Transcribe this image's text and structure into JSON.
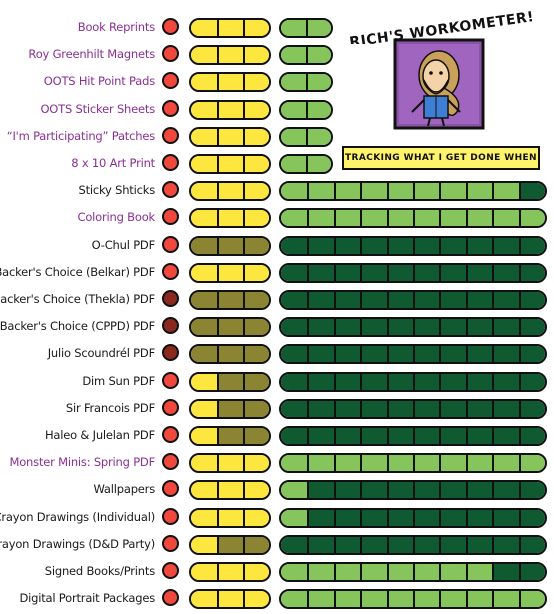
{
  "header": {
    "title": "RICH'S WORKOMETER!",
    "tagline": "TRACKING WHAT I GET DONE WHEN"
  },
  "colors": {
    "circle_red": "#f0483c",
    "circle_dark_red": "#8a2a1e",
    "yellow": "#fde63d",
    "olive": "#8b8432",
    "light_green": "#85c55c",
    "dark_green": "#0f5a30",
    "label_purple": "#8b2f96"
  },
  "rows": [
    {
      "label": "Book Reprints",
      "label_color": "purple",
      "circle": "red",
      "stage": [
        "yellow",
        "yellow",
        "yellow"
      ],
      "progress_segments": 2,
      "progress": [
        "light",
        "light"
      ]
    },
    {
      "label": "Roy Greenhilt Magnets",
      "label_color": "purple",
      "circle": "red",
      "stage": [
        "yellow",
        "yellow",
        "yellow"
      ],
      "progress_segments": 2,
      "progress": [
        "light",
        "light"
      ]
    },
    {
      "label": "OOTS Hit Point Pads",
      "label_color": "purple",
      "circle": "red",
      "stage": [
        "yellow",
        "yellow",
        "yellow"
      ],
      "progress_segments": 2,
      "progress": [
        "light",
        "light"
      ]
    },
    {
      "label": "OOTS Sticker Sheets",
      "label_color": "purple",
      "circle": "red",
      "stage": [
        "yellow",
        "yellow",
        "yellow"
      ],
      "progress_segments": 2,
      "progress": [
        "light",
        "light"
      ]
    },
    {
      "label": "“I'm Participating” Patches",
      "label_color": "purple",
      "circle": "red",
      "stage": [
        "yellow",
        "yellow",
        "yellow"
      ],
      "progress_segments": 2,
      "progress": [
        "light",
        "light"
      ]
    },
    {
      "label": "8 x 10 Art Print",
      "label_color": "purple",
      "circle": "red",
      "stage": [
        "yellow",
        "yellow",
        "yellow"
      ],
      "progress_segments": 2,
      "progress": [
        "light",
        "light"
      ]
    },
    {
      "label": "Sticky Shticks",
      "label_color": "black",
      "circle": "red",
      "stage": [
        "yellow",
        "yellow",
        "yellow"
      ],
      "progress_segments": 10,
      "progress": [
        "light",
        "light",
        "light",
        "light",
        "light",
        "light",
        "light",
        "light",
        "light",
        "dark"
      ]
    },
    {
      "label": "Coloring Book",
      "label_color": "purple",
      "circle": "red",
      "stage": [
        "yellow",
        "yellow",
        "yellow"
      ],
      "progress_segments": 10,
      "progress": [
        "light",
        "light",
        "light",
        "light",
        "light",
        "light",
        "light",
        "light",
        "light",
        "light"
      ]
    },
    {
      "label": "O-Chul PDF",
      "label_color": "black",
      "circle": "red",
      "stage": [
        "olive",
        "olive",
        "olive"
      ],
      "progress_segments": 10,
      "progress": [
        "dark",
        "dark",
        "dark",
        "dark",
        "dark",
        "dark",
        "dark",
        "dark",
        "dark",
        "dark"
      ]
    },
    {
      "label": "Backer's Choice (Belkar) PDF",
      "label_color": "black",
      "circle": "red",
      "stage": [
        "yellow",
        "yellow",
        "yellow"
      ],
      "progress_segments": 10,
      "progress": [
        "dark",
        "dark",
        "dark",
        "dark",
        "dark",
        "dark",
        "dark",
        "dark",
        "dark",
        "dark"
      ]
    },
    {
      "label": "Backer's Choice (Thekla) PDF",
      "label_color": "black",
      "circle": "darkred",
      "stage": [
        "olive",
        "olive",
        "olive"
      ],
      "progress_segments": 10,
      "progress": [
        "dark",
        "dark",
        "dark",
        "dark",
        "dark",
        "dark",
        "dark",
        "dark",
        "dark",
        "dark"
      ]
    },
    {
      "label": "Backer's Choice (CPPD) PDF",
      "label_color": "black",
      "circle": "darkred",
      "stage": [
        "olive",
        "olive",
        "olive"
      ],
      "progress_segments": 10,
      "progress": [
        "dark",
        "dark",
        "dark",
        "dark",
        "dark",
        "dark",
        "dark",
        "dark",
        "dark",
        "dark"
      ]
    },
    {
      "label": "Julio Scoundrél PDF",
      "label_color": "black",
      "circle": "darkred",
      "stage": [
        "olive",
        "olive",
        "olive"
      ],
      "progress_segments": 10,
      "progress": [
        "dark",
        "dark",
        "dark",
        "dark",
        "dark",
        "dark",
        "dark",
        "dark",
        "dark",
        "dark"
      ]
    },
    {
      "label": "Dim Sun PDF",
      "label_color": "black",
      "circle": "red",
      "stage": [
        "yellow",
        "olive",
        "olive"
      ],
      "progress_segments": 10,
      "progress": [
        "dark",
        "dark",
        "dark",
        "dark",
        "dark",
        "dark",
        "dark",
        "dark",
        "dark",
        "dark"
      ]
    },
    {
      "label": "Sir Francois  PDF",
      "label_color": "black",
      "circle": "red",
      "stage": [
        "yellow",
        "olive",
        "olive"
      ],
      "progress_segments": 10,
      "progress": [
        "dark",
        "dark",
        "dark",
        "dark",
        "dark",
        "dark",
        "dark",
        "dark",
        "dark",
        "dark"
      ]
    },
    {
      "label": "Haleo & Julelan PDF",
      "label_color": "black",
      "circle": "red",
      "stage": [
        "yellow",
        "olive",
        "olive"
      ],
      "progress_segments": 10,
      "progress": [
        "dark",
        "dark",
        "dark",
        "dark",
        "dark",
        "dark",
        "dark",
        "dark",
        "dark",
        "dark"
      ]
    },
    {
      "label": "Monster Minis: Spring PDF",
      "label_color": "purple",
      "circle": "red",
      "stage": [
        "yellow",
        "yellow",
        "yellow"
      ],
      "progress_segments": 10,
      "progress": [
        "light",
        "light",
        "light",
        "light",
        "light",
        "light",
        "light",
        "light",
        "light",
        "light"
      ]
    },
    {
      "label": "Wallpapers",
      "label_color": "black",
      "circle": "red",
      "stage": [
        "yellow",
        "yellow",
        "yellow"
      ],
      "progress_segments": 10,
      "progress": [
        "light",
        "dark",
        "dark",
        "dark",
        "dark",
        "dark",
        "dark",
        "dark",
        "dark",
        "dark"
      ]
    },
    {
      "label": "Crayon Drawings (Individual)",
      "label_color": "black",
      "circle": "red",
      "stage": [
        "yellow",
        "yellow",
        "yellow"
      ],
      "progress_segments": 10,
      "progress": [
        "light",
        "dark",
        "dark",
        "dark",
        "dark",
        "dark",
        "dark",
        "dark",
        "dark",
        "dark"
      ]
    },
    {
      "label": "Crayon Drawings (D&D Party)",
      "label_color": "black",
      "circle": "red",
      "stage": [
        "yellow",
        "olive",
        "olive"
      ],
      "progress_segments": 10,
      "progress": [
        "dark",
        "dark",
        "dark",
        "dark",
        "dark",
        "dark",
        "dark",
        "dark",
        "dark",
        "dark"
      ]
    },
    {
      "label": "Signed Books/Prints",
      "label_color": "black",
      "circle": "red",
      "stage": [
        "yellow",
        "yellow",
        "yellow"
      ],
      "progress_segments": 10,
      "progress": [
        "light",
        "light",
        "light",
        "light",
        "light",
        "light",
        "light",
        "light",
        "dark",
        "dark"
      ]
    },
    {
      "label": "Digital Portrait Packages",
      "label_color": "black",
      "circle": "red",
      "stage": [
        "yellow",
        "yellow",
        "yellow"
      ],
      "progress_segments": 10,
      "progress": [
        "light",
        "light",
        "light",
        "light",
        "light",
        "light",
        "light",
        "light",
        "light",
        "light"
      ]
    }
  ]
}
